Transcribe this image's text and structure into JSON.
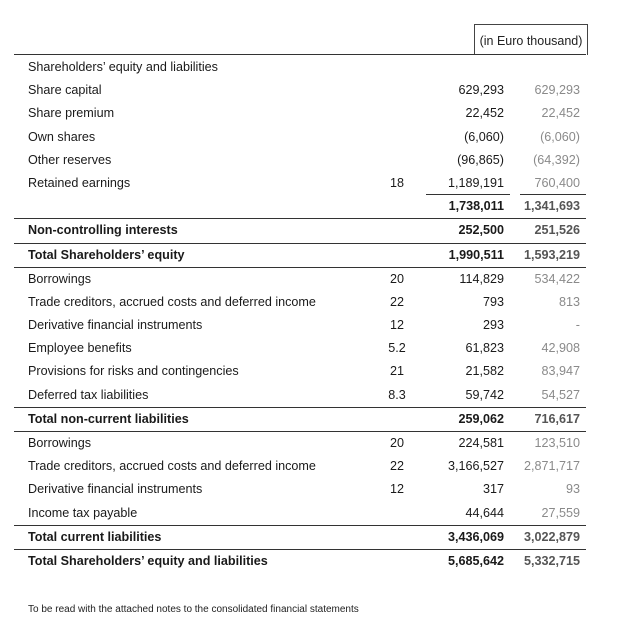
{
  "header_fragment": "",
  "unit_label": "(in Euro thousand)",
  "rows": [
    {
      "label": "Shareholders’ equity and liabilities",
      "note": "",
      "current": "",
      "previous": "",
      "bold": true
    },
    {
      "label": "Share capital",
      "note": "",
      "current": "629,293",
      "previous": "629,293",
      "bold": false
    },
    {
      "label": "Share premium",
      "note": "",
      "current": "22,452",
      "previous": "22,452",
      "bold": false
    },
    {
      "label": "Own shares",
      "note": "",
      "current": "(6,060)",
      "previous": "(6,060)",
      "bold": false
    },
    {
      "label": "Other reserves",
      "note": "",
      "current": "(96,865)",
      "previous": "(64,392)",
      "bold": false
    },
    {
      "label": "Retained earnings",
      "note": "18",
      "current": "1,189,191",
      "previous": "760,400",
      "bold": false
    },
    {
      "label": "",
      "note": "",
      "current": "1,738,011",
      "previous": "1,341,693",
      "bold": true
    },
    {
      "label": "Non-controlling interests",
      "note": "",
      "current": "252,500",
      "previous": "251,526",
      "bold": true
    },
    {
      "label": "Total Shareholders’ equity",
      "note": "",
      "current": "1,990,511",
      "previous": "1,593,219",
      "bold": true
    },
    {
      "label": "Borrowings",
      "note": "20",
      "current": "114,829",
      "previous": "534,422",
      "bold": false
    },
    {
      "label": "Trade creditors, accrued costs and deferred income",
      "note": "22",
      "current": "793",
      "previous": "813",
      "bold": false
    },
    {
      "label": "Derivative financial instruments",
      "note": "12",
      "current": "293",
      "previous": "-",
      "bold": false
    },
    {
      "label": "Employee benefits",
      "note": "5.2",
      "current": "61,823",
      "previous": "42,908",
      "bold": false
    },
    {
      "label": "Provisions for risks and contingencies",
      "note": "21",
      "current": "21,582",
      "previous": "83,947",
      "bold": false
    },
    {
      "label": "Deferred tax liabilities",
      "note": "8.3",
      "current": "59,742",
      "previous": "54,527",
      "bold": false
    },
    {
      "label": "Total non-current liabilities",
      "note": "",
      "current": "259,062",
      "previous": "716,617",
      "bold": true
    },
    {
      "label": "Borrowings",
      "note": "20",
      "current": "224,581",
      "previous": "123,510",
      "bold": false
    },
    {
      "label": "Trade creditors, accrued costs and deferred income",
      "note": "22",
      "current": "3,166,527",
      "previous": "2,871,717",
      "bold": false
    },
    {
      "label": "Derivative financial instruments",
      "note": "12",
      "current": "317",
      "previous": "93",
      "bold": false
    },
    {
      "label": "Income tax payable",
      "note": "",
      "current": "44,644",
      "previous": "27,559",
      "bold": false
    },
    {
      "label": "Total current liabilities",
      "note": "",
      "current": "3,436,069",
      "previous": "3,022,879",
      "bold": true
    },
    {
      "label": "Total Shareholders’ equity and liabilities",
      "note": "",
      "current": "5,685,642",
      "previous": "5,332,715",
      "bold": true
    }
  ],
  "footnote": "To be read with the attached notes to the consolidated financial statements"
}
